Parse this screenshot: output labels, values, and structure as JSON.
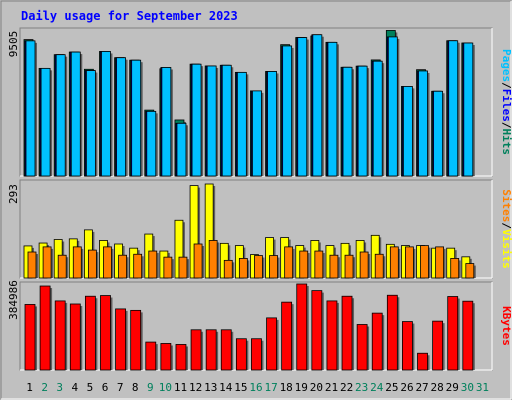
{
  "chart_data": [
    {
      "type": "bar",
      "title": "Daily usage for September 2023",
      "categories": [
        "1",
        "2",
        "3",
        "4",
        "5",
        "6",
        "7",
        "8",
        "9",
        "10",
        "11",
        "12",
        "13",
        "14",
        "15",
        "16",
        "17",
        "18",
        "19",
        "20",
        "21",
        "22",
        "23",
        "24",
        "25",
        "26",
        "27",
        "28",
        "29",
        "30",
        "31"
      ],
      "weekend_categories": [
        "2",
        "3",
        "9",
        "10",
        "16",
        "17",
        "23",
        "24",
        "30",
        "31"
      ],
      "ymax_label": "9505",
      "ylim": [
        0,
        9505
      ],
      "series": [
        {
          "name": "Hits",
          "values": [
            8880,
            7006,
            7898,
            8068,
            6948,
            8108,
            7701,
            7538,
            4290,
            6981,
            3648,
            7279,
            7163,
            7208,
            6746,
            5541,
            6806,
            8551,
            9014,
            9112,
            8701,
            7077,
            7151,
            7557,
            9475,
            5831,
            6922,
            5516,
            8805,
            8658,
            0
          ]
        },
        {
          "name": "Files",
          "values": [
            8798,
            7006,
            7898,
            8068,
            6865,
            8108,
            7701,
            7538,
            4208,
            7065,
            3430,
            7279,
            7163,
            7208,
            6746,
            5541,
            6806,
            8467,
            9014,
            9197,
            8701,
            7077,
            7151,
            7474,
            9055,
            5831,
            6839,
            5516,
            8805,
            8658,
            0
          ]
        },
        {
          "name": "Pages",
          "values": [
            8798,
            7006,
            7898,
            8068,
            6865,
            8108,
            7701,
            7538,
            4208,
            7065,
            3430,
            7279,
            7163,
            7208,
            6746,
            5541,
            6806,
            8467,
            9014,
            9197,
            8701,
            7077,
            7151,
            7474,
            9055,
            5831,
            6839,
            5516,
            8805,
            8658,
            0
          ]
        }
      ],
      "legend": [
        "Pages",
        "Files",
        "Hits"
      ],
      "colors": {
        "Hits": "#00805c",
        "Files": "#0000ff",
        "Pages": "#00c0ff"
      }
    },
    {
      "type": "bar",
      "title": "",
      "categories": [
        "1",
        "2",
        "3",
        "4",
        "5",
        "6",
        "7",
        "8",
        "9",
        "10",
        "11",
        "12",
        "13",
        "14",
        "15",
        "16",
        "17",
        "18",
        "19",
        "20",
        "21",
        "22",
        "23",
        "24",
        "25",
        "26",
        "27",
        "28",
        "29",
        "30",
        "31"
      ],
      "ymax_label": "293",
      "ylim": [
        0,
        293
      ],
      "series": [
        {
          "name": "Visits",
          "values": [
            100,
            109,
            120,
            122,
            150,
            117,
            106,
            93,
            137,
            84,
            180,
            288,
            293,
            108,
            101,
            73,
            126,
            126,
            101,
            117,
            101,
            108,
            117,
            133,
            105,
            101,
            101,
            93,
            93,
            66,
            0
          ]
        },
        {
          "name": "Sites",
          "values": [
            81,
            97,
            71,
            97,
            87,
            97,
            71,
            74,
            84,
            65,
            65,
            106,
            117,
            55,
            61,
            70,
            70,
            97,
            84,
            84,
            71,
            71,
            81,
            74,
            97,
            97,
            101,
            97,
            61,
            45,
            0
          ]
        }
      ],
      "legend": [
        "Sites",
        "Visits"
      ],
      "colors": {
        "Visits": "#ffff00",
        "Sites": "#ff8000"
      }
    },
    {
      "type": "bar",
      "title": "",
      "categories": [
        "1",
        "2",
        "3",
        "4",
        "5",
        "6",
        "7",
        "8",
        "9",
        "10",
        "11",
        "12",
        "13",
        "14",
        "15",
        "16",
        "17",
        "18",
        "19",
        "20",
        "21",
        "22",
        "23",
        "24",
        "25",
        "26",
        "27",
        "28",
        "29",
        "30",
        "31"
      ],
      "ymax_label": "384986",
      "ylim": [
        0,
        384986
      ],
      "series": [
        {
          "name": "KBytes",
          "values": [
            293451,
            375932,
            309252,
            295502,
            330237,
            333362,
            273454,
            266953,
            125004,
            118754,
            114379,
            180000,
            180000,
            180000,
            140002,
            140000,
            233325,
            303749,
            384986,
            355406,
            309252,
            330237,
            203752,
            254579,
            334612,
            216878,
            74999,
            218747,
            328987,
            308004,
            0
          ]
        }
      ],
      "legend": [
        "KBytes"
      ],
      "colors": {
        "KBytes": "#ff0000"
      }
    }
  ],
  "palette": {
    "background": "#c0c0c0",
    "title": "#0000ff",
    "weekday": "#000000",
    "weekend": "#00805c"
  }
}
